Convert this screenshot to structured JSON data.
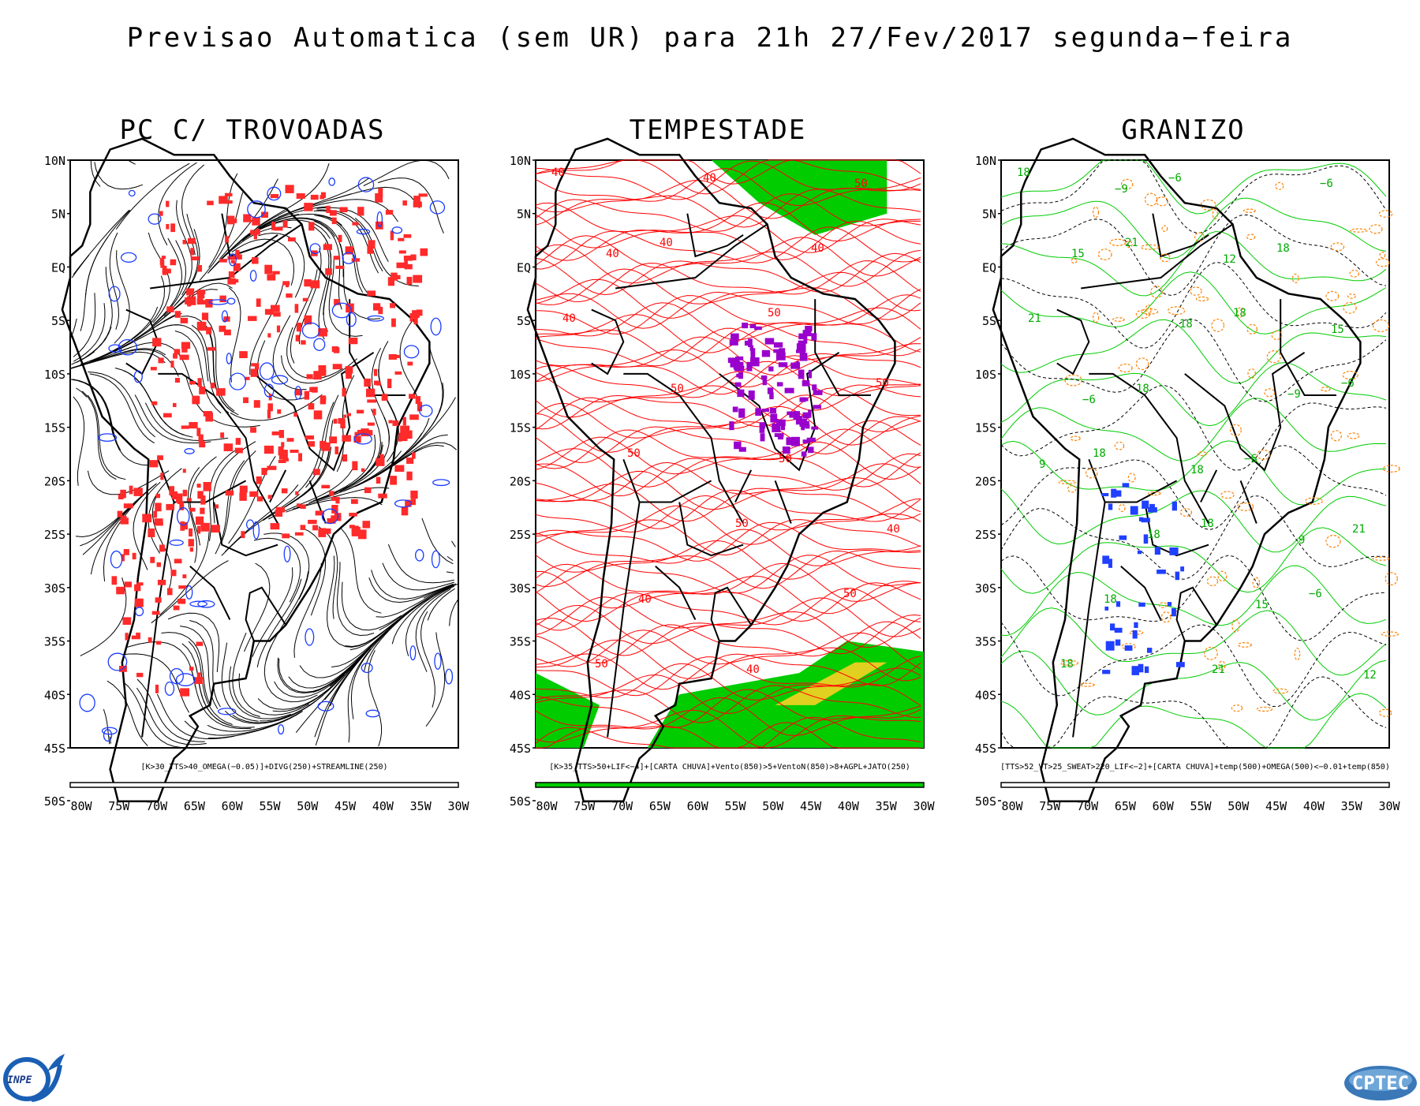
{
  "title": "Previsao Automatica (sem UR) para 21h 27/Fev/2017 segunda−feira",
  "lat_labels": [
    "10N",
    "5N",
    "EQ",
    "5S",
    "10S",
    "15S",
    "20S",
    "25S",
    "30S",
    "35S",
    "40S",
    "45S",
    "50S"
  ],
  "lon_labels": [
    "80W",
    "75W",
    "70W",
    "65W",
    "60W",
    "55W",
    "50W",
    "45W",
    "40W",
    "35W",
    "30W"
  ],
  "panels": [
    {
      "title": "PC C/ TROVOADAS",
      "caption": "[K>30_TTS>40_OMEGA(−0.05)]+DIVG(250)+STREAMLINE(250)",
      "contour_labels": []
    },
    {
      "title": "TEMPESTADE",
      "caption": "[K>35_TTS>50+LIF<−4]+[CARTA CHUVA]+Vento(850)>5+VentoN(850)>8+AGPL+JATO(250)",
      "contour_labels": [
        "40",
        "40",
        "50",
        "50",
        "50",
        "50",
        "50",
        "50",
        "40",
        "40",
        "40",
        "50",
        "50",
        "40",
        "40",
        "40",
        "50",
        "40"
      ]
    },
    {
      "title": "GRANIZO",
      "caption": "[TTS>52_VT>25_SWEAT>220_LIF<−2]+[CARTA CHUVA]+temp(500)+OMEGA(500)<−0.01+temp(850)",
      "contour_labels": [
        "18",
        "21",
        "18",
        "−6",
        "18",
        "18",
        "−6",
        "18",
        "−6",
        "18",
        "21",
        "18",
        "−6",
        "21",
        "18",
        "21",
        "−6",
        "15",
        "18",
        "−9",
        "9",
        "18",
        "15",
        "12",
        "−9",
        "12",
        "15",
        "−6",
        "18",
        "9"
      ]
    }
  ],
  "logos": {
    "left": "INPE",
    "right": "CPTEC"
  },
  "colors": {
    "streamline": "#000000",
    "divergence": "#1a3cff",
    "thunder_mask": "#ff2a2a",
    "storm_contour": "#ff0000",
    "storm_mask": "#9900cc",
    "wind_mask": "#00cc00",
    "jet_mask": "#e0d020",
    "temp500": "#00cc00",
    "omega": "#000000",
    "temp850": "#ff8000",
    "hail_mask": "#2040ff"
  }
}
